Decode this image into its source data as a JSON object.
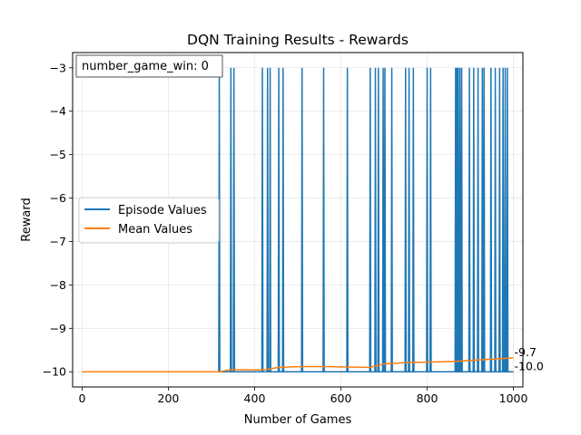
{
  "chart_data": {
    "type": "line",
    "title": "DQN Training Results - Rewards",
    "xlabel": "Number of Games",
    "ylabel": "Reward",
    "xlim": [
      -22,
      1022
    ],
    "ylim": [
      -10.35,
      -2.65
    ],
    "xticks": [
      0,
      200,
      400,
      600,
      800,
      1000
    ],
    "xtick_labels": [
      "0",
      "200",
      "400",
      "600",
      "800",
      "1000"
    ],
    "yticks": [
      -3,
      -4,
      -5,
      -6,
      -7,
      -8,
      -9,
      -10
    ],
    "ytick_labels": [
      "−3",
      "−4",
      "−5",
      "−6",
      "−7",
      "−8",
      "−9",
      "−10"
    ],
    "grid": true,
    "legend_position": "center-left",
    "series": [
      {
        "name": "Episode Values",
        "color": "#1f77b4",
        "baseline": -10,
        "spike_value": -3,
        "spike_x": [
          318,
          345,
          352,
          418,
          430,
          436,
          456,
          466,
          510,
          560,
          615,
          668,
          680,
          687,
          698,
          702,
          718,
          750,
          758,
          768,
          800,
          808,
          866,
          869,
          872,
          876,
          880,
          898,
          908,
          918,
          928,
          932,
          948,
          958,
          968,
          976,
          981,
          986
        ]
      },
      {
        "name": "Mean Values",
        "color": "#ff7f0e",
        "x": [
          0,
          318,
          345,
          418,
          456,
          510,
          560,
          615,
          668,
          700,
          750,
          800,
          866,
          900,
          950,
          1000
        ],
        "y": [
          -10,
          -10,
          -9.95,
          -9.96,
          -9.9,
          -9.88,
          -9.88,
          -9.89,
          -9.9,
          -9.82,
          -9.79,
          -9.78,
          -9.76,
          -9.74,
          -9.71,
          -9.68
        ]
      }
    ],
    "annotations": [
      {
        "text": "-9.7",
        "x": 1000,
        "y": -9.6
      },
      {
        "text": "-10.0",
        "x": 1000,
        "y": -9.92
      }
    ],
    "info_box": "number_game_win: 0"
  }
}
